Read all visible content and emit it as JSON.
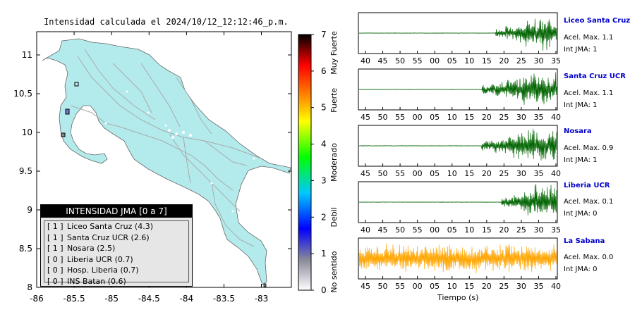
{
  "map": {
    "title": "Intensidad calculada el 2024/10/12_12:12:46_p.m.",
    "lon_ticks": [
      "-86",
      "-85.5",
      "-85",
      "-84.5",
      "-84",
      "-83.5",
      "-83"
    ],
    "lat_ticks": [
      "11",
      "10.5",
      "10",
      "9.5",
      "9",
      "8.5",
      "8"
    ],
    "lon_range": [
      -86,
      -82.6
    ],
    "lat_range": [
      8,
      11.3
    ],
    "colors": {
      "land": "#b3ebed",
      "roads": "#aaaaaa",
      "frame": "#000000"
    }
  },
  "colorbar": {
    "ticks": [
      "0",
      "1",
      "2",
      "3",
      "4",
      "5",
      "6",
      "7"
    ],
    "category_labels": [
      "No sentido",
      "Debil",
      "Moderado",
      "Fuerte",
      "Muy Fuerte"
    ],
    "colors": [
      "#ffffff",
      "#888899",
      "#0000ff",
      "#00c8ff",
      "#00ff00",
      "#ffff00",
      "#ff8800",
      "#ff0000",
      "#000000"
    ]
  },
  "legend": {
    "title": "INTENSIDAD JMA [0 a 7]",
    "rows": [
      {
        "level": "[ 1 ]",
        "name": "Liceo Santa Cruz (4.3)"
      },
      {
        "level": "[ 1 ]",
        "name": "Santa Cruz UCR (2.6)"
      },
      {
        "level": "[ 1 ]",
        "name": "Nosara (2.5)"
      },
      {
        "level": "[ 0 ]",
        "name": "Liberia UCR (0.7)"
      },
      {
        "level": "[ 0 ]",
        "name": "Hosp. Liberia (0.7)"
      },
      {
        "level": "[ 0 ]",
        "name": "INS Batan (0.6)"
      }
    ]
  },
  "chart_data": {
    "type": "line",
    "xlabel": "Tiempo (s)",
    "series": [
      {
        "name": "Liceo Santa Cruz",
        "accel": "Acel. Max. 1.1",
        "jma": "Int JMA: 1",
        "color": "#006400",
        "ticks": [
          "40",
          "45",
          "50",
          "55",
          "00",
          "05",
          "10",
          "15",
          "20",
          "25",
          "30",
          "35"
        ],
        "onset_frac": 0.69
      },
      {
        "name": "Santa Cruz UCR",
        "accel": "Acel. Max. 1.1",
        "jma": "Int JMA: 1",
        "color": "#006400",
        "ticks": [
          "45",
          "50",
          "55",
          "00",
          "05",
          "10",
          "15",
          "20",
          "25",
          "30",
          "35",
          "40"
        ],
        "onset_frac": 0.62
      },
      {
        "name": "Nosara",
        "accel": "Acel. Max. 0.9",
        "jma": "Int JMA: 1",
        "color": "#006400",
        "ticks": [
          "45",
          "50",
          "55",
          "00",
          "05",
          "10",
          "15",
          "20",
          "25",
          "30",
          "35",
          "40"
        ],
        "onset_frac": 0.62
      },
      {
        "name": "Liberia UCR",
        "accel": "Acel. Max. 0.1",
        "jma": "Int JMA: 0",
        "color": "#006400",
        "ticks": [
          "40",
          "45",
          "50",
          "55",
          "00",
          "05",
          "10",
          "15",
          "20",
          "25",
          "30",
          "35"
        ],
        "onset_frac": 0.72
      },
      {
        "name": "La Sabana",
        "accel": "Acel. Max. 0.0",
        "jma": "Int JMA: 0",
        "color": "#ffa500",
        "ticks": [
          "45",
          "50",
          "55",
          "00",
          "05",
          "10",
          "15",
          "20",
          "25",
          "30",
          "35",
          "40"
        ],
        "onset_frac": 0.0
      }
    ]
  }
}
